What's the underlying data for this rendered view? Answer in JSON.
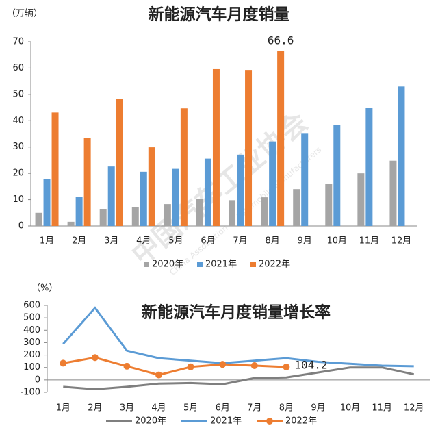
{
  "watermark": [
    "中国汽车工业协会",
    "China Association of Automobile Manufacturers"
  ],
  "chart_data": [
    {
      "type": "bar",
      "title": "新能源汽车月度销量",
      "y_label": "（万辆）",
      "categories": [
        "1月",
        "2月",
        "3月",
        "4月",
        "5月",
        "6月",
        "7月",
        "8月",
        "9月",
        "10月",
        "11月",
        "12月"
      ],
      "series": [
        {
          "name": "2020年",
          "color": "#a5a5a5",
          "values": [
            5.0,
            1.6,
            6.5,
            7.2,
            8.3,
            10.4,
            9.8,
            10.9,
            14.0,
            16.0,
            20.0,
            24.8
          ]
        },
        {
          "name": "2021年",
          "color": "#5b9bd5",
          "values": [
            17.9,
            11.0,
            22.6,
            20.6,
            21.7,
            25.6,
            27.1,
            32.1,
            35.3,
            38.3,
            45.0,
            53.0
          ]
        },
        {
          "name": "2022年",
          "color": "#ed7d31",
          "values": [
            43.1,
            33.4,
            48.4,
            29.9,
            44.7,
            59.6,
            59.3,
            66.6,
            null,
            null,
            null,
            null
          ],
          "value_labels": [
            null,
            null,
            null,
            null,
            null,
            null,
            null,
            "66.6",
            null,
            null,
            null,
            null
          ]
        }
      ],
      "ylim": [
        0,
        70
      ],
      "yticks": [
        0,
        10,
        20,
        30,
        40,
        50,
        60,
        70
      ],
      "legend": "bottom"
    },
    {
      "type": "line",
      "title": "新能源汽车月度销量增长率",
      "y_label": "（%）",
      "categories": [
        "1月",
        "2月",
        "3月",
        "4月",
        "5月",
        "6月",
        "7月",
        "8月",
        "9月",
        "10月",
        "11月",
        "12月"
      ],
      "series": [
        {
          "name": "2020年",
          "color": "#7f7f7f",
          "values": [
            -55,
            -75,
            -55,
            -30,
            -25,
            -35,
            15,
            20,
            60,
            100,
            100,
            45
          ]
        },
        {
          "name": "2021年",
          "color": "#5b9bd5",
          "values": [
            290,
            580,
            235,
            175,
            155,
            135,
            155,
            175,
            145,
            130,
            115,
            110
          ]
        },
        {
          "name": "2022年",
          "color": "#ed7d31",
          "markers": true,
          "values": [
            135,
            180,
            110,
            40,
            105,
            125,
            115,
            104.2,
            null,
            null,
            null,
            null
          ],
          "value_labels": [
            null,
            null,
            null,
            null,
            null,
            null,
            null,
            "104.2",
            null,
            null,
            null,
            null
          ]
        }
      ],
      "ylim": [
        -100,
        600
      ],
      "yticks": [
        -100,
        0,
        100,
        200,
        300,
        400,
        500,
        600
      ],
      "legend": "bottom"
    }
  ]
}
